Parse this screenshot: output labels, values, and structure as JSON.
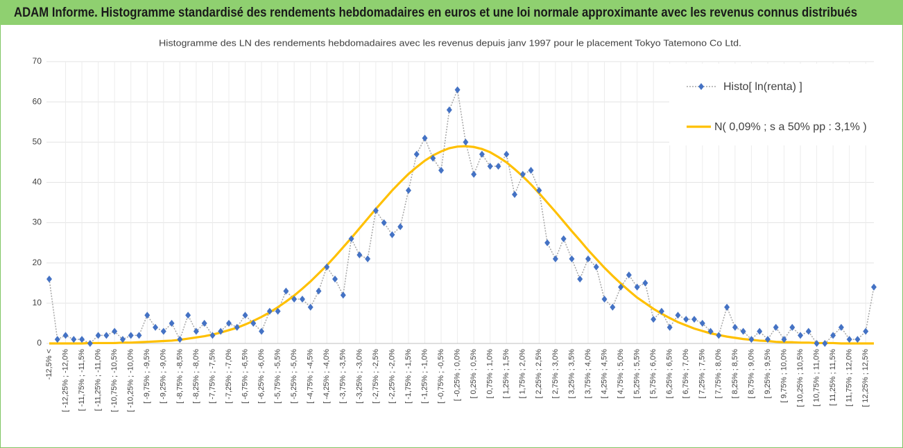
{
  "chart_data": {
    "type": "line",
    "title": "ADAM Informe. Histogramme standardisé des rendements hebdomadaires en euros et une loi normale approximante avec les revenus connus distribués",
    "subtitle": "Histogramme  des LN des rendements hebdomadaires avec les revenus depuis janv 1997 pour le placement Tokyo Tatemono Co Ltd.",
    "categories": [
      "-12,5% <",
      null,
      "[ -12,25% ; -12,0%",
      null,
      "[ -11,75% ; -11,5%",
      null,
      "[ -11,25% ; -11,0%",
      null,
      "[ -10,75% ; -10,5%",
      null,
      "[ -10,25% ; -10,0%",
      null,
      "[ -9,75% ; -9,5%",
      null,
      "[ -9,25% ; -9,0%",
      null,
      "[ -8,75% ; -8,5%",
      null,
      "[ -8,25% ; -8,0%",
      null,
      "[ -7,75% ; -7,5%",
      null,
      "[ -7,25% ; -7,0%",
      null,
      "[ -6,75% ; -6,5%",
      null,
      "[ -6,25% ; -6,0%",
      null,
      "[ -5,75% ; -5,5%",
      null,
      "[ -5,25% ; -5,0%",
      null,
      "[ -4,75% ; -4,5%",
      null,
      "[ -4,25% ; -4,0%",
      null,
      "[ -3,75% ; -3,5%",
      null,
      "[ -3,25% ; -3,0%",
      null,
      "[ -2,75% ; -2,5%",
      null,
      "[ -2,25% ; -2,0%",
      null,
      "[ -1,75% ; -1,5%",
      null,
      "[ -1,25% ; -1,0%",
      null,
      "[ -0,75% ; -0,5%",
      null,
      "[ -0,25% ; 0,0%",
      null,
      "[ 0,25% ; 0,5%",
      null,
      "[ 0,75% ; 1,0%",
      null,
      "[ 1,25% ; 1,5%",
      null,
      "[ 1,75% ; 2,0%",
      null,
      "[ 2,25% ; 2,5%",
      null,
      "[ 2,75% ; 3,0%",
      null,
      "[ 3,25% ; 3,5%",
      null,
      "[ 3,75% ; 4,0%",
      null,
      "[ 4,25% ; 4,5%",
      null,
      "[ 4,75% ; 5,0%",
      null,
      "[ 5,25% ; 5,5%",
      null,
      "[ 5,75% ; 6,0%",
      null,
      "[ 6,25% ; 6,5%",
      null,
      "[ 6,75% ; 7,0%",
      null,
      "[ 7,25% ; 7,5%",
      null,
      "[ 7,75% ; 8,0%",
      null,
      "[ 8,25% ; 8,5%",
      null,
      "[ 8,75% ; 9,0%",
      null,
      "[ 9,25% ; 9,5%",
      null,
      "[ 9,75% ; 10,0%",
      null,
      "[ 10,25% ; 10,5%",
      null,
      "[ 10,75% ; 11,0%",
      null,
      "[ 11,25% ; 11,5%",
      null,
      "[ 11,75% ; 12,0%",
      null,
      "[ 12,25% ; 12,5%",
      null
    ],
    "series": [
      {
        "name": "Histo[ ln(renta) ]",
        "color": "#4472c4",
        "line_color": "#a5a5a5",
        "values": [
          16,
          1,
          2,
          1,
          1,
          0,
          2,
          2,
          3,
          1,
          2,
          2,
          7,
          4,
          3,
          5,
          1,
          7,
          3,
          5,
          2,
          3,
          5,
          4,
          7,
          5,
          3,
          8,
          8,
          13,
          11,
          11,
          9,
          13,
          19,
          16,
          12,
          26,
          22,
          21,
          33,
          30,
          27,
          29,
          38,
          47,
          51,
          46,
          43,
          58,
          63,
          50,
          42,
          47,
          44,
          44,
          47,
          37,
          42,
          43,
          38,
          25,
          21,
          26,
          21,
          16,
          21,
          19,
          11,
          9,
          14,
          17,
          14,
          15,
          6,
          8,
          4,
          7,
          6,
          6,
          5,
          3,
          2,
          9,
          4,
          3,
          1,
          3,
          1,
          4,
          1,
          4,
          2,
          3,
          0,
          0,
          2,
          4,
          1,
          1,
          3,
          14
        ]
      },
      {
        "name": "N( 0,09% ; s a 50% pp : 3,1% )",
        "color": "#ffc000",
        "values": [
          0,
          0,
          0,
          0,
          0,
          0.1,
          0.1,
          0.1,
          0.1,
          0.2,
          0.2,
          0.3,
          0.4,
          0.5,
          0.6,
          0.7,
          0.9,
          1.2,
          1.5,
          1.8,
          2.2,
          2.7,
          3.3,
          3.9,
          4.7,
          5.6,
          6.6,
          7.7,
          9,
          10.4,
          11.9,
          13.6,
          15.4,
          17.4,
          19.4,
          21.6,
          23.9,
          26.2,
          28.6,
          31,
          33.4,
          35.7,
          38,
          40.1,
          42.1,
          43.8,
          45.4,
          46.7,
          47.7,
          48.5,
          48.9,
          49,
          48.8,
          48.3,
          47.5,
          46.3,
          45,
          43.3,
          41.5,
          39.5,
          37.3,
          35,
          32.7,
          30.3,
          27.9,
          25.6,
          23.2,
          21,
          18.8,
          16.8,
          14.9,
          13.1,
          11.4,
          10,
          8.6,
          7.4,
          6.3,
          5.3,
          4.5,
          3.7,
          3.1,
          2.5,
          2.1,
          1.7,
          1.4,
          1.1,
          0.9,
          0.7,
          0.6,
          0.4,
          0.3,
          0.3,
          0.2,
          0.2,
          0.1,
          0.1,
          0.1,
          0,
          0,
          0,
          0,
          0
        ]
      }
    ],
    "ylim": [
      0,
      70
    ],
    "yticks": [
      0,
      10,
      20,
      30,
      40,
      50,
      60,
      70
    ],
    "grid": true,
    "legend": "upper right"
  }
}
